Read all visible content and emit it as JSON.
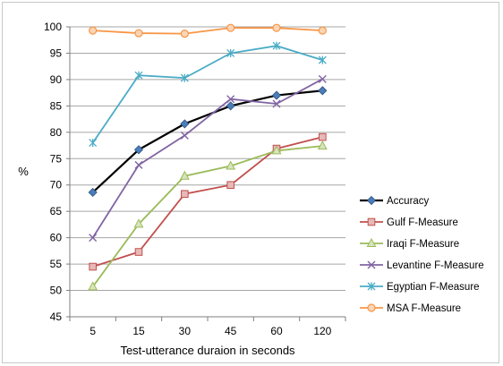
{
  "chart_data": {
    "type": "line",
    "title": "",
    "xlabel": "Test-utterance duraion in seconds",
    "ylabel": "%",
    "categories": [
      "5",
      "15",
      "30",
      "45",
      "60",
      "120"
    ],
    "ylim": [
      45,
      100
    ],
    "yticks": [
      45,
      50,
      55,
      60,
      65,
      70,
      75,
      80,
      85,
      90,
      95,
      100
    ],
    "grid": "horizontal",
    "legend_position": "right",
    "series": [
      {
        "name": "Accuracy",
        "color": "#000000",
        "marker": "diamond",
        "marker_color": "#4a7ebb",
        "values": [
          68.6,
          76.7,
          81.6,
          85.0,
          87.0,
          87.9
        ]
      },
      {
        "name": "Gulf F-Measure",
        "color": "#c0504d",
        "marker": "square",
        "values": [
          54.5,
          57.3,
          68.3,
          70.0,
          76.9,
          79.1
        ]
      },
      {
        "name": "Iraqi F-Measure",
        "color": "#9bbb59",
        "marker": "triangle",
        "values": [
          50.7,
          62.6,
          71.7,
          73.6,
          76.5,
          77.4
        ]
      },
      {
        "name": "Levantine F-Measure",
        "color": "#8064a2",
        "marker": "x",
        "values": [
          60.0,
          73.8,
          79.4,
          86.3,
          85.4,
          90.1
        ]
      },
      {
        "name": "Egyptian F-Measure",
        "color": "#4bacc6",
        "marker": "star",
        "values": [
          78.0,
          90.8,
          90.3,
          95.0,
          96.4,
          93.7
        ]
      },
      {
        "name": "MSA F-Measure",
        "color": "#f79646",
        "marker": "circle",
        "values": [
          99.3,
          98.8,
          98.7,
          99.8,
          99.8,
          99.3
        ]
      }
    ]
  }
}
